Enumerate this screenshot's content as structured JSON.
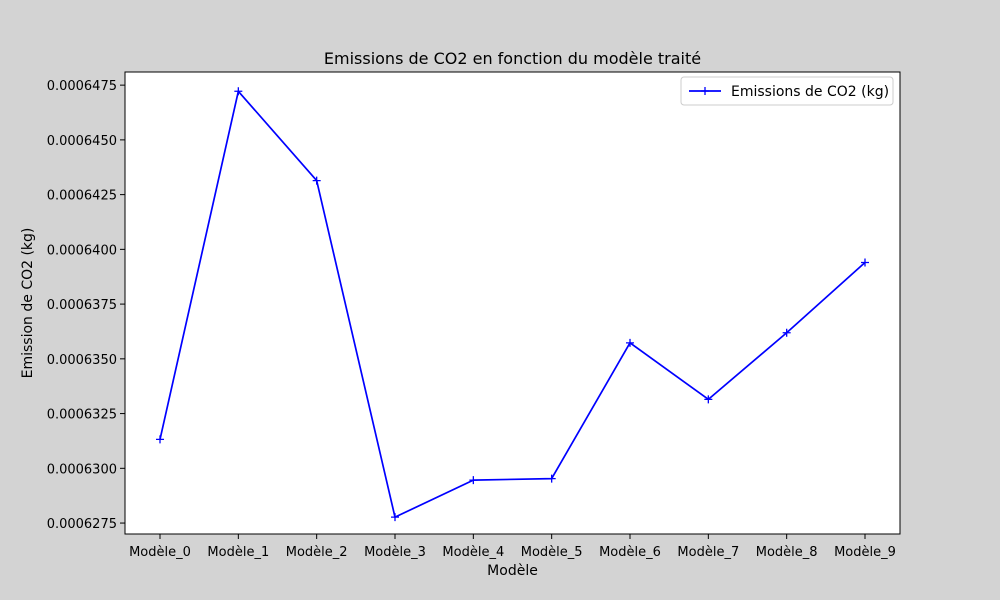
{
  "chart_data": {
    "type": "line",
    "title": "Emissions de CO2 en fonction du modèle traité",
    "xlabel": "Modèle",
    "ylabel": "Emission de CO2 (kg)",
    "categories": [
      "Modèle_0",
      "Modèle_1",
      "Modèle_2",
      "Modèle_3",
      "Modèle_4",
      "Modèle_5",
      "Modèle_6",
      "Modèle_7",
      "Modèle_8",
      "Modèle_9"
    ],
    "series": [
      {
        "name": "Emissions de CO2 (kg)",
        "color": "#0000ff",
        "marker": "plus",
        "values": [
          0.00063132,
          0.00064722,
          0.00064314,
          0.00062777,
          0.00062946,
          0.00062953,
          0.00063573,
          0.00063315,
          0.00063619,
          0.0006394
        ]
      }
    ],
    "ylim": [
      0.000627,
      0.0006481
    ],
    "yticks": [
      0.0006275,
      0.00063,
      0.0006325,
      0.000635,
      0.0006375,
      0.00064,
      0.0006425,
      0.000645,
      0.0006475
    ],
    "ytick_labels": [
      "0.0006275",
      "0.0006300",
      "0.0006325",
      "0.0006350",
      "0.0006375",
      "0.0006400",
      "0.0006425",
      "0.0006450",
      "0.0006475"
    ],
    "grid": false,
    "legend_position": "top-right"
  }
}
